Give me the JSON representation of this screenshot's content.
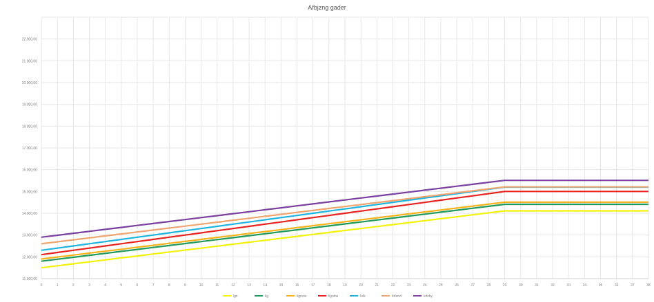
{
  "chart_data": {
    "type": "line",
    "title": "Afbjzng gader",
    "x": [
      "0",
      "1",
      "2",
      "3",
      "4",
      "5",
      "6",
      "7",
      "8",
      "9",
      "10",
      "11",
      "12",
      "13",
      "14",
      "15",
      "16",
      "17",
      "18",
      "19",
      "20",
      "21",
      "22",
      "23",
      "24",
      "25",
      "26",
      "27",
      "28",
      "29",
      "30",
      "31",
      "32",
      "33",
      "34",
      "35",
      "36",
      "37",
      "38"
    ],
    "y_ticks": [
      "11.000,00",
      "12.000,00",
      "13.000,00",
      "14.000,00",
      "15.000,00",
      "16.000,00",
      "17.000,00",
      "18.000,00",
      "19.000,00",
      "20.000,00",
      "21.000,00",
      "22.000,00"
    ],
    "ylim": [
      11000,
      23000
    ],
    "grid": true,
    "legend_position": "bottom",
    "series": [
      {
        "name": "lgs",
        "color": "#f2f20a",
        "values": [
          11500,
          11590,
          11680,
          11770,
          11860,
          11950,
          12040,
          12130,
          12220,
          12310,
          12400,
          12490,
          12580,
          12670,
          12760,
          12850,
          12940,
          13030,
          13120,
          13210,
          13300,
          13390,
          13480,
          13570,
          13660,
          13750,
          13840,
          13930,
          14020,
          14110,
          14110,
          14110,
          14110,
          14110,
          14110,
          14110,
          14110,
          14110,
          14110
        ]
      },
      {
        "name": "lig",
        "color": "#1f9a5a",
        "values": [
          11800,
          11890,
          11980,
          12070,
          12160,
          12250,
          12340,
          12430,
          12520,
          12610,
          12700,
          12790,
          12880,
          12970,
          13060,
          13150,
          13240,
          13330,
          13420,
          13510,
          13600,
          13690,
          13780,
          13870,
          13960,
          14050,
          14140,
          14230,
          14320,
          14410,
          14410,
          14410,
          14410,
          14410,
          14410,
          14410,
          14410,
          14410,
          14410
        ]
      },
      {
        "name": "lignoni",
        "color": "#f5b21b",
        "values": [
          11900,
          11990,
          12080,
          12170,
          12260,
          12350,
          12440,
          12530,
          12620,
          12710,
          12800,
          12890,
          12980,
          13070,
          13160,
          13250,
          13340,
          13430,
          13520,
          13610,
          13700,
          13790,
          13880,
          13970,
          14060,
          14150,
          14240,
          14330,
          14420,
          14510,
          14510,
          14510,
          14510,
          14510,
          14510,
          14510,
          14510,
          14510,
          14510
        ]
      },
      {
        "name": "lignhsi",
        "color": "#e8231f",
        "values": [
          12100,
          12200,
          12300,
          12400,
          12500,
          12600,
          12700,
          12800,
          12900,
          13000,
          13100,
          13200,
          13300,
          13400,
          13500,
          13600,
          13700,
          13800,
          13900,
          14000,
          14100,
          14200,
          14300,
          14400,
          14500,
          14600,
          14700,
          14800,
          14900,
          15000,
          15000,
          15000,
          15000,
          15000,
          15000,
          15000,
          15000,
          15000,
          15000
        ]
      },
      {
        "name": "lofz",
        "color": "#1fb4e0",
        "values": [
          12300,
          12400,
          12500,
          12600,
          12700,
          12800,
          12900,
          13000,
          13100,
          13200,
          13300,
          13400,
          13500,
          13600,
          13700,
          13800,
          13900,
          14000,
          14100,
          14200,
          14300,
          14400,
          14500,
          14600,
          14700,
          14800,
          14900,
          15000,
          15100,
          15200,
          15200,
          15200,
          15200,
          15200,
          15200,
          15200,
          15200,
          15200,
          15200
        ]
      },
      {
        "name": "lofznvl",
        "color": "#f0a46e",
        "values": [
          12600,
          12690,
          12780,
          12870,
          12960,
          13050,
          13140,
          13230,
          13320,
          13410,
          13500,
          13590,
          13680,
          13770,
          13860,
          13950,
          14040,
          14130,
          14220,
          14310,
          14400,
          14490,
          14580,
          14670,
          14760,
          14850,
          14940,
          15030,
          15120,
          15210,
          15210,
          15210,
          15210,
          15210,
          15210,
          15210,
          15210,
          15210,
          15210
        ]
      },
      {
        "name": "lofzby",
        "color": "#7a3fa0",
        "values": [
          12900,
          12990,
          13080,
          13170,
          13260,
          13350,
          13440,
          13530,
          13620,
          13710,
          13800,
          13890,
          13980,
          14070,
          14160,
          14250,
          14340,
          14430,
          14520,
          14610,
          14700,
          14790,
          14880,
          14970,
          15060,
          15150,
          15240,
          15330,
          15420,
          15510,
          15510,
          15510,
          15510,
          15510,
          15510,
          15510,
          15510,
          15510,
          15510
        ]
      }
    ]
  }
}
